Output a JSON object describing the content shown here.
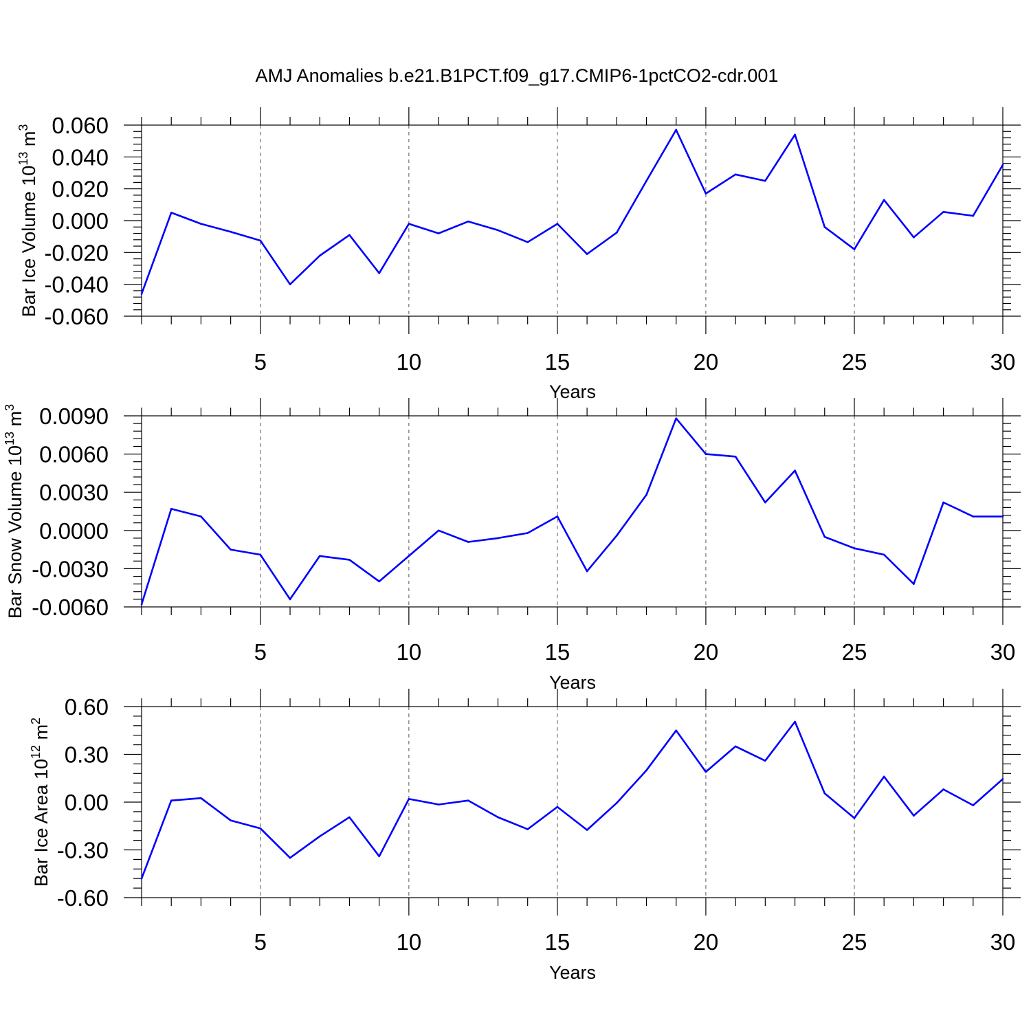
{
  "title": "AMJ Anomalies b.e21.B1PCT.f09_g17.CMIP6-1pctCO2-cdr.001",
  "line_color": "#0000ff",
  "chart_data": [
    {
      "type": "line",
      "ylabel": "Bar Ice Volume 10",
      "ylabel_exp": "13",
      "ylabel_unit": " m",
      "ylabel_unit_exp": "3",
      "xlabel": "Years",
      "xlim": [
        1,
        30
      ],
      "ylim": [
        -0.06,
        0.06
      ],
      "yticks": [
        -0.06,
        -0.04,
        -0.02,
        0.0,
        0.02,
        0.04,
        0.06
      ],
      "ytick_labels": [
        "-0.060",
        "-0.040",
        "-0.020",
        "0.000",
        "0.020",
        "0.040",
        "0.060"
      ],
      "xticks": [
        5,
        10,
        15,
        20,
        25,
        30
      ],
      "xtick_labels": [
        "5",
        "10",
        "15",
        "20",
        "25",
        "30"
      ],
      "x": [
        1,
        2,
        3,
        4,
        5,
        6,
        7,
        8,
        9,
        10,
        11,
        12,
        13,
        14,
        15,
        16,
        17,
        18,
        19,
        20,
        21,
        22,
        23,
        24,
        25,
        26,
        27,
        28,
        29,
        30
      ],
      "values": [
        -0.046,
        0.005,
        -0.002,
        -0.007,
        -0.0125,
        -0.04,
        -0.022,
        -0.009,
        -0.033,
        -0.002,
        -0.008,
        -0.0005,
        -0.006,
        -0.0135,
        -0.002,
        -0.021,
        -0.0075,
        0.025,
        0.057,
        0.017,
        0.029,
        0.025,
        0.054,
        -0.004,
        -0.018,
        0.013,
        -0.0105,
        0.0055,
        0.003,
        0.035
      ]
    },
    {
      "type": "line",
      "ylabel": "Bar Snow Volume 10",
      "ylabel_exp": "13",
      "ylabel_unit": " m",
      "ylabel_unit_exp": "3",
      "xlabel": "Years",
      "xlim": [
        1,
        30
      ],
      "ylim": [
        -0.006,
        0.009
      ],
      "yticks": [
        -0.006,
        -0.003,
        0.0,
        0.003,
        0.006,
        0.009
      ],
      "ytick_labels": [
        "-0.0060",
        "-0.0030",
        "0.0000",
        "0.0030",
        "0.0060",
        "0.0090"
      ],
      "xticks": [
        5,
        10,
        15,
        20,
        25,
        30
      ],
      "xtick_labels": [
        "5",
        "10",
        "15",
        "20",
        "25",
        "30"
      ],
      "x": [
        1,
        2,
        3,
        4,
        5,
        6,
        7,
        8,
        9,
        10,
        11,
        12,
        13,
        14,
        15,
        16,
        17,
        18,
        19,
        20,
        21,
        22,
        23,
        24,
        25,
        26,
        27,
        28,
        29,
        30
      ],
      "values": [
        -0.0058,
        0.0017,
        0.0011,
        -0.0015,
        -0.0019,
        -0.0054,
        -0.002,
        -0.0023,
        -0.004,
        -0.002,
        0.0,
        -0.0009,
        -0.0006,
        -0.0002,
        0.0011,
        -0.0032,
        -0.0004,
        0.0028,
        0.0088,
        0.006,
        0.0058,
        0.0022,
        0.0047,
        -0.0005,
        -0.0014,
        -0.0019,
        -0.0042,
        0.0022,
        0.0011,
        0.0011
      ]
    },
    {
      "type": "line",
      "ylabel": "Bar Ice Area 10",
      "ylabel_exp": "12",
      "ylabel_unit": " m",
      "ylabel_unit_exp": "2",
      "xlabel": "Years",
      "xlim": [
        1,
        30
      ],
      "ylim": [
        -0.6,
        0.6
      ],
      "yticks": [
        -0.6,
        -0.3,
        0.0,
        0.3,
        0.6
      ],
      "ytick_labels": [
        "-0.60",
        "-0.30",
        "0.00",
        "0.30",
        "0.60"
      ],
      "xticks": [
        5,
        10,
        15,
        20,
        25,
        30
      ],
      "xtick_labels": [
        "5",
        "10",
        "15",
        "20",
        "25",
        "30"
      ],
      "x": [
        1,
        2,
        3,
        4,
        5,
        6,
        7,
        8,
        9,
        10,
        11,
        12,
        13,
        14,
        15,
        16,
        17,
        18,
        19,
        20,
        21,
        22,
        23,
        24,
        25,
        26,
        27,
        28,
        29,
        30
      ],
      "values": [
        -0.48,
        0.01,
        0.025,
        -0.115,
        -0.165,
        -0.35,
        -0.215,
        -0.095,
        -0.34,
        0.02,
        -0.015,
        0.01,
        -0.095,
        -0.17,
        -0.03,
        -0.175,
        -0.005,
        0.2,
        0.45,
        0.19,
        0.35,
        0.26,
        0.505,
        0.055,
        -0.1,
        0.16,
        -0.085,
        0.08,
        -0.02,
        0.145
      ]
    }
  ]
}
